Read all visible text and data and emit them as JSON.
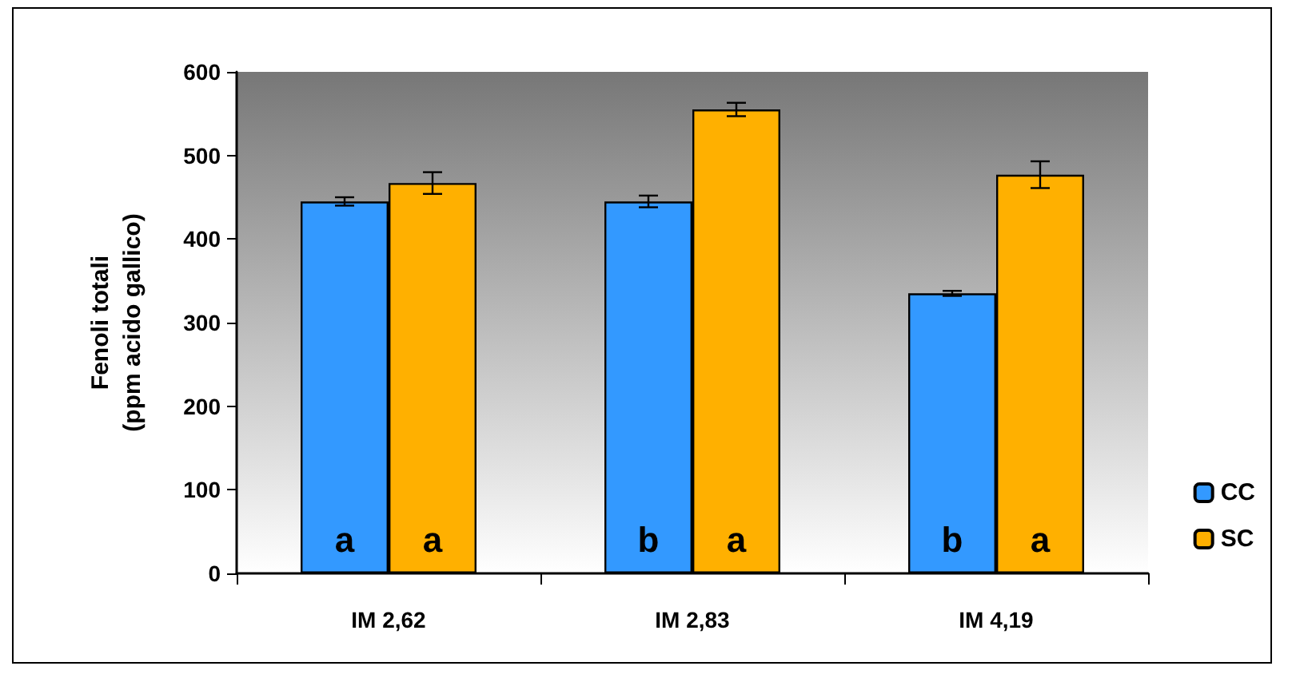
{
  "chart_data": {
    "type": "bar",
    "ylabel": "Fenoli totali\n(ppm acido gallico)",
    "categories": [
      "IM 2,62",
      "IM 2,83",
      "IM 4,19"
    ],
    "series": [
      {
        "name": "CC",
        "color": "#3399ff",
        "values": [
          445,
          445,
          335
        ],
        "errors": [
          5,
          7,
          3
        ]
      },
      {
        "name": "SC",
        "color": "#ffb000",
        "values": [
          467,
          555,
          477
        ],
        "errors": [
          13,
          8,
          16
        ]
      }
    ],
    "ylim": [
      0,
      600
    ],
    "yticks": [
      0,
      100,
      200,
      300,
      400,
      500,
      600
    ],
    "grid": false,
    "legend": "right",
    "annotations": [
      {
        "text": "a",
        "x": "IM 2,62",
        "y": 40
      },
      {
        "text": "a",
        "x": "IM 2,62",
        "y": 40
      },
      {
        "text": "b",
        "x": "IM 2,83",
        "y": 40
      },
      {
        "text": "a",
        "x": "IM 2,83",
        "y": 40
      },
      {
        "text": "b",
        "x": "IM 4,19",
        "y": 40
      },
      {
        "text": "a",
        "x": "IM 4,19",
        "y": 40
      }
    ]
  }
}
